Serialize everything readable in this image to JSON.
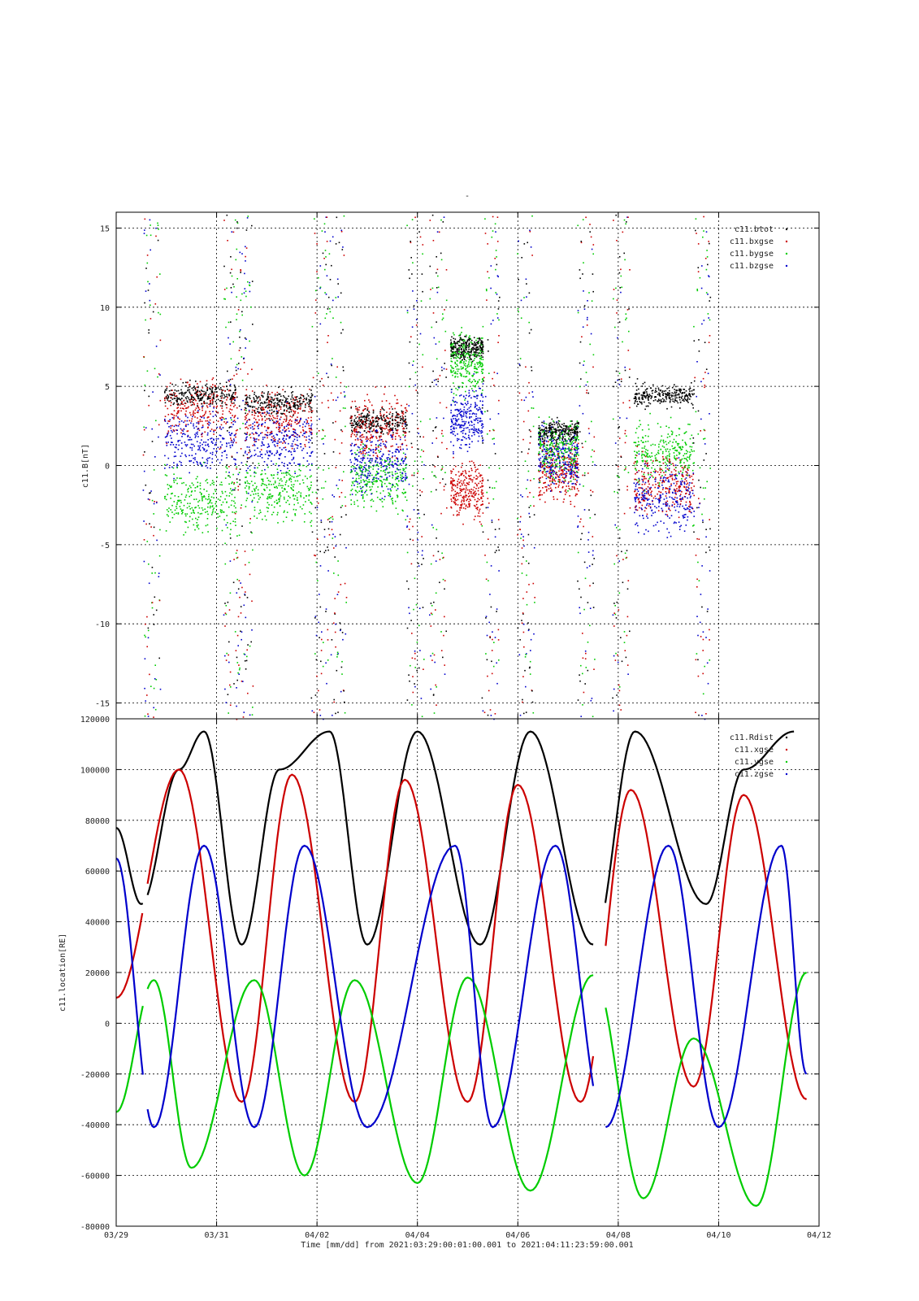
{
  "figure": {
    "top_title": "-",
    "xlabel": "Time [mm/dd]  from 2021:03:29:00:01:00.001  to  2021:04:11:23:59:00.001",
    "x_ticks": [
      "03/29",
      "03/31",
      "04/02",
      "04/04",
      "04/06",
      "04/08",
      "04/10",
      "04/12"
    ]
  },
  "chart_data": [
    {
      "type": "scatter",
      "ylabel": "c11.B[nT]",
      "ylim": [
        -16,
        16
      ],
      "y_ticks": [
        15,
        10,
        5,
        0,
        -5,
        -10,
        -15
      ],
      "xlim": [
        "2021-03-29",
        "2021-04-12"
      ],
      "grid": true,
      "legend_position": "top-right",
      "series": [
        {
          "name": "c11.btot",
          "color": "#000000"
        },
        {
          "name": "c11.bxgse",
          "color": "#cc0000"
        },
        {
          "name": "c11.bygse",
          "color": "#00cc00"
        },
        {
          "name": "c11.bzgse",
          "color": "#0000cc"
        }
      ]
    },
    {
      "type": "line",
      "ylabel": "c11.location[RE]",
      "ylim": [
        -80000,
        120000
      ],
      "y_ticks": [
        120000,
        100000,
        80000,
        60000,
        40000,
        20000,
        0,
        -20000,
        -40000,
        -60000,
        -80000
      ],
      "xlim": [
        "2021-03-29",
        "2021-04-12"
      ],
      "grid": true,
      "legend_position": "top-right",
      "series": [
        {
          "name": "c11.Rdist",
          "color": "#000000",
          "x": [
            "03/29 00:00",
            "03/29 12:00",
            "03/30 06:00",
            "03/30 18:00",
            "03/31 12:00",
            "04/01 06:00",
            "04/02 06:00",
            "04/03 00:00",
            "04/04 00:00",
            "04/05 06:00",
            "04/06 06:00",
            "04/07 12:00",
            "04/08 08:00",
            "04/09 18:00",
            "04/10 12:00",
            "04/11 12:00"
          ],
          "y": [
            77000,
            47000,
            100000,
            115000,
            31000,
            100000,
            115000,
            31000,
            115000,
            31000,
            115000,
            31000,
            115000,
            47000,
            100000,
            115000
          ]
        },
        {
          "name": "c11.xgse",
          "color": "#cc0000",
          "x": [
            "03/29 00:00",
            "03/30 06:00",
            "03/31 12:00",
            "04/01 12:00",
            "04/02 18:00",
            "04/03 18:00",
            "04/05 00:00",
            "04/06 00:00",
            "04/07 06:00",
            "04/08 06:00",
            "04/09 12:00",
            "04/10 12:00",
            "04/11 18:00"
          ],
          "y": [
            10000,
            100000,
            -31000,
            98000,
            -31000,
            96000,
            -31000,
            94000,
            -31000,
            92000,
            -25000,
            90000,
            -30000
          ]
        },
        {
          "name": "c11.ygse",
          "color": "#00cc00",
          "x": [
            "03/29 00:00",
            "03/29 18:00",
            "03/30 12:00",
            "03/31 18:00",
            "04/01 18:00",
            "04/02 18:00",
            "04/04 00:00",
            "04/05 00:00",
            "04/06 06:00",
            "04/07 12:00",
            "04/08 12:00",
            "04/09 12:00",
            "04/10 18:00",
            "04/11 18:00"
          ],
          "y": [
            -35000,
            17000,
            -57000,
            17000,
            -60000,
            17000,
            -63000,
            18000,
            -66000,
            19000,
            -69000,
            -6000,
            -72000,
            20000
          ]
        },
        {
          "name": "c11.zgse",
          "color": "#0000cc",
          "x": [
            "03/29 00:00",
            "03/29 18:00",
            "03/30 18:00",
            "03/31 18:00",
            "04/01 18:00",
            "04/03 00:00",
            "04/04 18:00",
            "04/05 12:00",
            "04/06 18:00",
            "04/07 18:00",
            "04/09 00:00",
            "04/10 00:00",
            "04/11 06:00",
            "04/11 18:00"
          ],
          "y": [
            65000,
            -41000,
            70000,
            -41000,
            70000,
            -41000,
            70000,
            -41000,
            70000,
            -41000,
            70000,
            -41000,
            70000,
            -20000
          ]
        }
      ]
    }
  ]
}
